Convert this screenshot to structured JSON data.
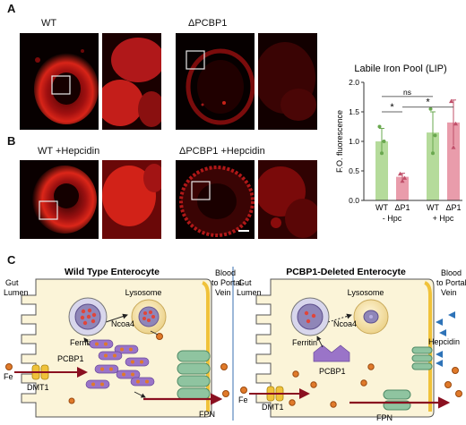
{
  "panels": {
    "a": "A",
    "b": "B",
    "c": "C"
  },
  "micrographs": {
    "wt": "WT",
    "dpcbp1": "ΔPCBP1",
    "wt_hep": "WT +Hepcidin",
    "dpcbp1_hep": "ΔPCBP1 +Hepcidin"
  },
  "chart_data": {
    "type": "bar",
    "title": "Labile Iron Pool (LIP)",
    "ylabel": "F.O. fluorescence",
    "ylim": [
      0,
      2.0
    ],
    "yticks": [
      "0.0",
      "0.5",
      "1.0",
      "1.5",
      "2.0"
    ],
    "categories": [
      "WT",
      "ΔP1",
      "WT",
      "ΔP1"
    ],
    "groups": [
      "- Hpc",
      "+ Hpc"
    ],
    "values": [
      1.0,
      0.4,
      1.15,
      1.32
    ],
    "errors": [
      0.22,
      0.06,
      0.35,
      0.38
    ],
    "points": [
      [
        1.25,
        1.0,
        0.8
      ],
      [
        0.45,
        0.38,
        0.33
      ],
      [
        1.55,
        1.1,
        0.8
      ],
      [
        1.68,
        1.3,
        0.9
      ]
    ],
    "colors": [
      "#a8d58a",
      "#e58b9c",
      "#a8d58a",
      "#e58b9c"
    ],
    "significance": [
      {
        "from": 0,
        "to": 1,
        "label": "*"
      },
      {
        "from": 0,
        "to": 2,
        "label": "ns"
      },
      {
        "from": 1,
        "to": 3,
        "label": "*"
      }
    ]
  },
  "diagram": {
    "wt": {
      "title": "Wild Type Enterocyte",
      "gut_lumen": [
        "Gut",
        "Lumen"
      ],
      "blood": [
        "Blood",
        "to Portal",
        "Vein"
      ],
      "lysosome": "Lysosome",
      "ncoa4": "Ncoa4",
      "ferritin": "Ferritin",
      "pcbp1": "PCBP1",
      "fe": "Fe",
      "dmt1": "DMT1",
      "fpn": "FPN"
    },
    "ko": {
      "title": "PCBP1-Deleted Enterocyte",
      "gut_lumen": [
        "Gut",
        "Lumen"
      ],
      "blood": [
        "Blood",
        "to Portal",
        "Vein"
      ],
      "lysosome": "Lysosome",
      "ncoa4": "Ncoa4",
      "ferritin": "Ferritin",
      "pcbp1": "PCBP1",
      "hepcidin": "Hepcidin",
      "fe": "Fe",
      "dmt1": "DMT1",
      "fpn": "FPN"
    }
  },
  "colors": {
    "micro_red": "#e0201a",
    "cell_fill": "#fbf4d8",
    "iron": "#e07a2a",
    "pcbp1": "#9a74c8",
    "fpn": "#8fc4a0",
    "arrow": "#a01a2a",
    "hepcidin": "#2e73b8"
  }
}
